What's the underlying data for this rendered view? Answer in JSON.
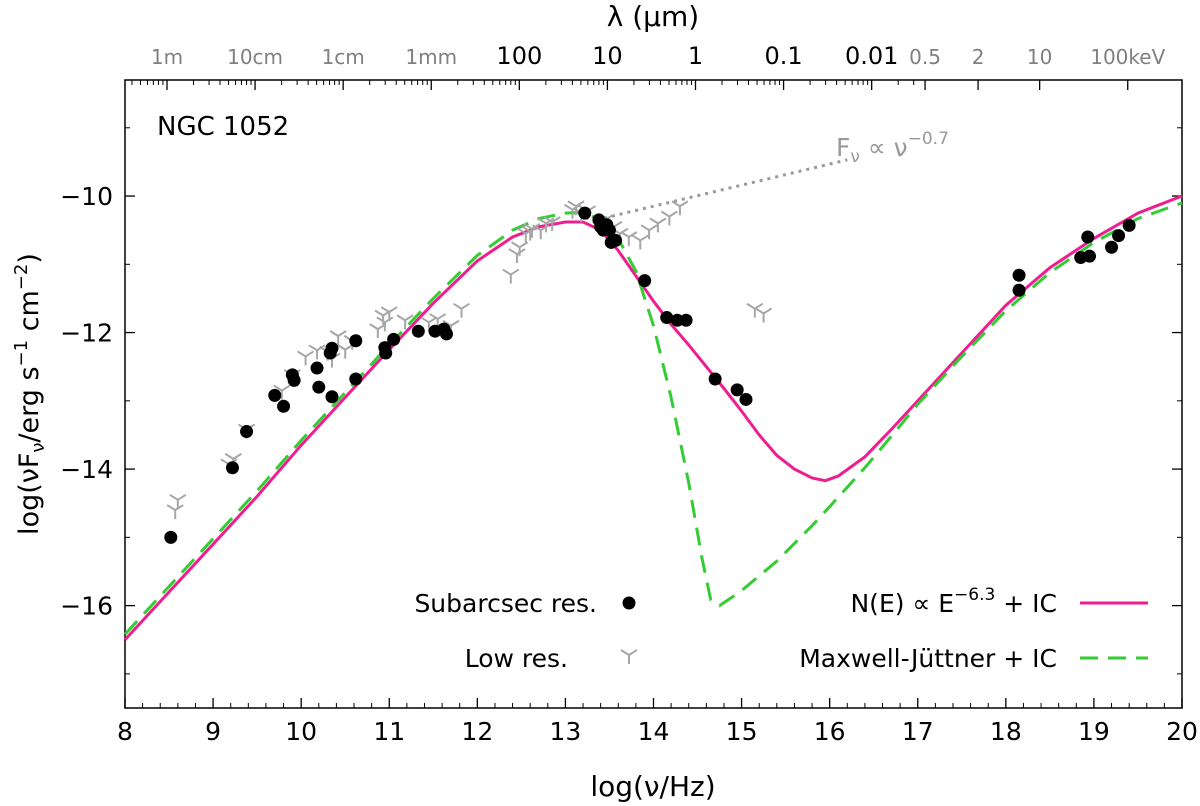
{
  "chart_data": {
    "type": "scatter",
    "title": "NGC 1052",
    "xlabel": "log(ν/Hz)",
    "ylabel": "log(νF",
    "ylabel_sub": "ν",
    "ylabel_tail": "/erg s",
    "ylabel_exp1": "−1",
    "ylabel_mid": " cm",
    "ylabel_exp2": "−2",
    "ylabel_close": ")",
    "top_axis_label": "λ (μm)",
    "xlim": [
      8,
      20
    ],
    "ylim": [
      -17.5,
      -8.3
    ],
    "x_ticks": [
      8,
      9,
      10,
      11,
      12,
      13,
      14,
      15,
      16,
      17,
      18,
      19,
      20
    ],
    "y_ticks": [
      -16,
      -14,
      -12,
      -10
    ],
    "top_ticks_black": [
      {
        "label": "100",
        "x": 12.4768
      },
      {
        "label": "10",
        "x": 13.4768
      },
      {
        "label": "1",
        "x": 14.4768
      },
      {
        "label": "0.1",
        "x": 15.4768
      },
      {
        "label": "0.01",
        "x": 16.4768
      }
    ],
    "top_ticks_gray": [
      {
        "label": "1m",
        "x": 8.4768
      },
      {
        "label": "10cm",
        "x": 9.4768
      },
      {
        "label": "1cm",
        "x": 10.4768
      },
      {
        "label": "1mm",
        "x": 11.4768
      },
      {
        "label": "0.5",
        "x": 17.083
      },
      {
        "label": "2",
        "x": 17.685
      },
      {
        "label": "10",
        "x": 18.384
      },
      {
        "label": "100keV",
        "x": 19.384
      }
    ],
    "series": [
      {
        "name": "Subarcsec res.",
        "marker": "circle",
        "color": "#000000",
        "points": [
          [
            8.52,
            -15.0
          ],
          [
            9.22,
            -13.98
          ],
          [
            9.38,
            -13.45
          ],
          [
            9.7,
            -12.92
          ],
          [
            9.8,
            -13.08
          ],
          [
            9.9,
            -12.62
          ],
          [
            9.92,
            -12.7
          ],
          [
            10.18,
            -12.52
          ],
          [
            10.2,
            -12.8
          ],
          [
            10.33,
            -12.3
          ],
          [
            10.35,
            -12.23
          ],
          [
            10.35,
            -12.94
          ],
          [
            10.62,
            -12.12
          ],
          [
            10.62,
            -12.68
          ],
          [
            10.95,
            -12.22
          ],
          [
            10.96,
            -12.3
          ],
          [
            11.05,
            -12.1
          ],
          [
            11.33,
            -11.98
          ],
          [
            11.52,
            -11.98
          ],
          [
            11.62,
            -11.95
          ],
          [
            11.65,
            -12.02
          ],
          [
            13.22,
            -10.25
          ],
          [
            13.38,
            -10.35
          ],
          [
            13.4,
            -10.45
          ],
          [
            13.43,
            -10.5
          ],
          [
            13.47,
            -10.42
          ],
          [
            13.5,
            -10.5
          ],
          [
            13.52,
            -10.68
          ],
          [
            13.57,
            -10.65
          ],
          [
            13.9,
            -11.24
          ],
          [
            14.15,
            -11.78
          ],
          [
            14.27,
            -11.82
          ],
          [
            14.37,
            -11.82
          ],
          [
            14.7,
            -12.68
          ],
          [
            14.95,
            -12.84
          ],
          [
            15.05,
            -12.98
          ],
          [
            18.15,
            -11.16
          ],
          [
            18.15,
            -11.38
          ],
          [
            18.85,
            -10.9
          ],
          [
            18.93,
            -10.6
          ],
          [
            18.95,
            -10.88
          ],
          [
            19.2,
            -10.75
          ],
          [
            19.28,
            -10.58
          ],
          [
            19.4,
            -10.43
          ]
        ]
      },
      {
        "name": "Low res.",
        "marker": "tri",
        "color": "#a6a6a6",
        "points": [
          [
            8.57,
            -14.6
          ],
          [
            8.6,
            -14.45
          ],
          [
            9.18,
            -13.93
          ],
          [
            9.23,
            -13.85
          ],
          [
            9.38,
            -13.42
          ],
          [
            9.78,
            -12.85
          ],
          [
            9.9,
            -12.62
          ],
          [
            10.05,
            -12.35
          ],
          [
            10.18,
            -12.26
          ],
          [
            10.3,
            -12.28
          ],
          [
            10.35,
            -12.38
          ],
          [
            10.42,
            -12.05
          ],
          [
            10.5,
            -12.25
          ],
          [
            10.58,
            -12.12
          ],
          [
            10.87,
            -11.95
          ],
          [
            10.93,
            -11.75
          ],
          [
            10.95,
            -11.85
          ],
          [
            11.0,
            -11.7
          ],
          [
            11.18,
            -11.82
          ],
          [
            11.45,
            -11.85
          ],
          [
            11.55,
            -11.8
          ],
          [
            11.7,
            -11.9
          ],
          [
            11.82,
            -11.65
          ],
          [
            12.38,
            -11.15
          ],
          [
            12.45,
            -10.85
          ],
          [
            12.48,
            -10.75
          ],
          [
            12.55,
            -10.55
          ],
          [
            12.6,
            -10.52
          ],
          [
            12.62,
            -10.48
          ],
          [
            12.72,
            -10.5
          ],
          [
            12.78,
            -10.4
          ],
          [
            12.85,
            -10.38
          ],
          [
            13.08,
            -10.2
          ],
          [
            13.12,
            -10.15
          ],
          [
            13.18,
            -10.25
          ],
          [
            13.25,
            -10.22
          ],
          [
            13.45,
            -10.35
          ],
          [
            13.55,
            -10.45
          ],
          [
            13.62,
            -10.55
          ],
          [
            13.72,
            -10.6
          ],
          [
            13.85,
            -10.65
          ],
          [
            13.95,
            -10.5
          ],
          [
            14.05,
            -10.4
          ],
          [
            14.18,
            -10.3
          ],
          [
            14.3,
            -10.15
          ],
          [
            15.15,
            -11.65
          ],
          [
            15.25,
            -11.72
          ]
        ]
      },
      {
        "name": "N(E) ∝ E^-6.3 + IC",
        "marker": "line",
        "color": "#ee1e90",
        "points": [
          [
            8.0,
            -16.5
          ],
          [
            8.5,
            -15.8
          ],
          [
            9.0,
            -15.1
          ],
          [
            9.5,
            -14.4
          ],
          [
            10.0,
            -13.65
          ],
          [
            10.5,
            -12.95
          ],
          [
            11.0,
            -12.25
          ],
          [
            11.5,
            -11.57
          ],
          [
            12.0,
            -10.95
          ],
          [
            12.4,
            -10.6
          ],
          [
            12.7,
            -10.45
          ],
          [
            13.0,
            -10.38
          ],
          [
            13.2,
            -10.38
          ],
          [
            13.4,
            -10.5
          ],
          [
            13.6,
            -10.8
          ],
          [
            13.8,
            -11.17
          ],
          [
            14.0,
            -11.54
          ],
          [
            14.2,
            -11.88
          ],
          [
            14.4,
            -12.18
          ],
          [
            14.6,
            -12.5
          ],
          [
            14.8,
            -12.82
          ],
          [
            15.0,
            -13.15
          ],
          [
            15.2,
            -13.5
          ],
          [
            15.4,
            -13.8
          ],
          [
            15.6,
            -14.0
          ],
          [
            15.8,
            -14.13
          ],
          [
            15.95,
            -14.17
          ],
          [
            16.1,
            -14.1
          ],
          [
            16.4,
            -13.82
          ],
          [
            16.7,
            -13.42
          ],
          [
            17.0,
            -13.0
          ],
          [
            17.5,
            -12.3
          ],
          [
            18.0,
            -11.6
          ],
          [
            18.5,
            -11.05
          ],
          [
            19.0,
            -10.62
          ],
          [
            19.5,
            -10.25
          ],
          [
            20.0,
            -10.0
          ]
        ]
      },
      {
        "name": "Maxwell-Jüttner + IC",
        "marker": "dash",
        "color": "#33cc33",
        "points": [
          [
            8.0,
            -16.42
          ],
          [
            8.5,
            -15.72
          ],
          [
            9.0,
            -15.02
          ],
          [
            9.5,
            -14.32
          ],
          [
            10.0,
            -13.58
          ],
          [
            10.5,
            -12.88
          ],
          [
            11.0,
            -12.18
          ],
          [
            11.5,
            -11.5
          ],
          [
            12.0,
            -10.87
          ],
          [
            12.4,
            -10.5
          ],
          [
            12.7,
            -10.33
          ],
          [
            13.0,
            -10.25
          ],
          [
            13.2,
            -10.24
          ],
          [
            13.4,
            -10.35
          ],
          [
            13.6,
            -10.63
          ],
          [
            13.8,
            -11.1
          ],
          [
            14.0,
            -11.9
          ],
          [
            14.2,
            -12.95
          ],
          [
            14.4,
            -14.2
          ],
          [
            14.55,
            -15.3
          ],
          [
            14.65,
            -15.92
          ],
          [
            14.75,
            -16.0
          ],
          [
            15.0,
            -15.78
          ],
          [
            15.4,
            -15.35
          ],
          [
            15.8,
            -14.83
          ],
          [
            16.0,
            -14.55
          ],
          [
            16.4,
            -13.98
          ],
          [
            16.7,
            -13.52
          ],
          [
            17.0,
            -13.05
          ],
          [
            17.5,
            -12.35
          ],
          [
            18.0,
            -11.68
          ],
          [
            18.5,
            -11.12
          ],
          [
            19.0,
            -10.68
          ],
          [
            19.5,
            -10.33
          ],
          [
            20.0,
            -10.1
          ]
        ]
      }
    ],
    "powerlaw_line": {
      "color": "#999999",
      "points": [
        [
          13.35,
          -10.35
        ],
        [
          16.2,
          -9.47
        ]
      ],
      "label": "F",
      "label_sub": "ν",
      "label_mid": " ∝ ν",
      "label_exp": "−0.7"
    },
    "legend_left": [
      {
        "label": "Subarcsec res.",
        "marker": "circle"
      },
      {
        "label": "Low res.",
        "marker": "tri"
      }
    ],
    "legend_right_1": {
      "prefix": "N(E) ∝ E",
      "exp": "−6.3",
      "suffix": " + IC"
    },
    "legend_right_2": {
      "label": "Maxwell-Jüttner + IC"
    }
  }
}
